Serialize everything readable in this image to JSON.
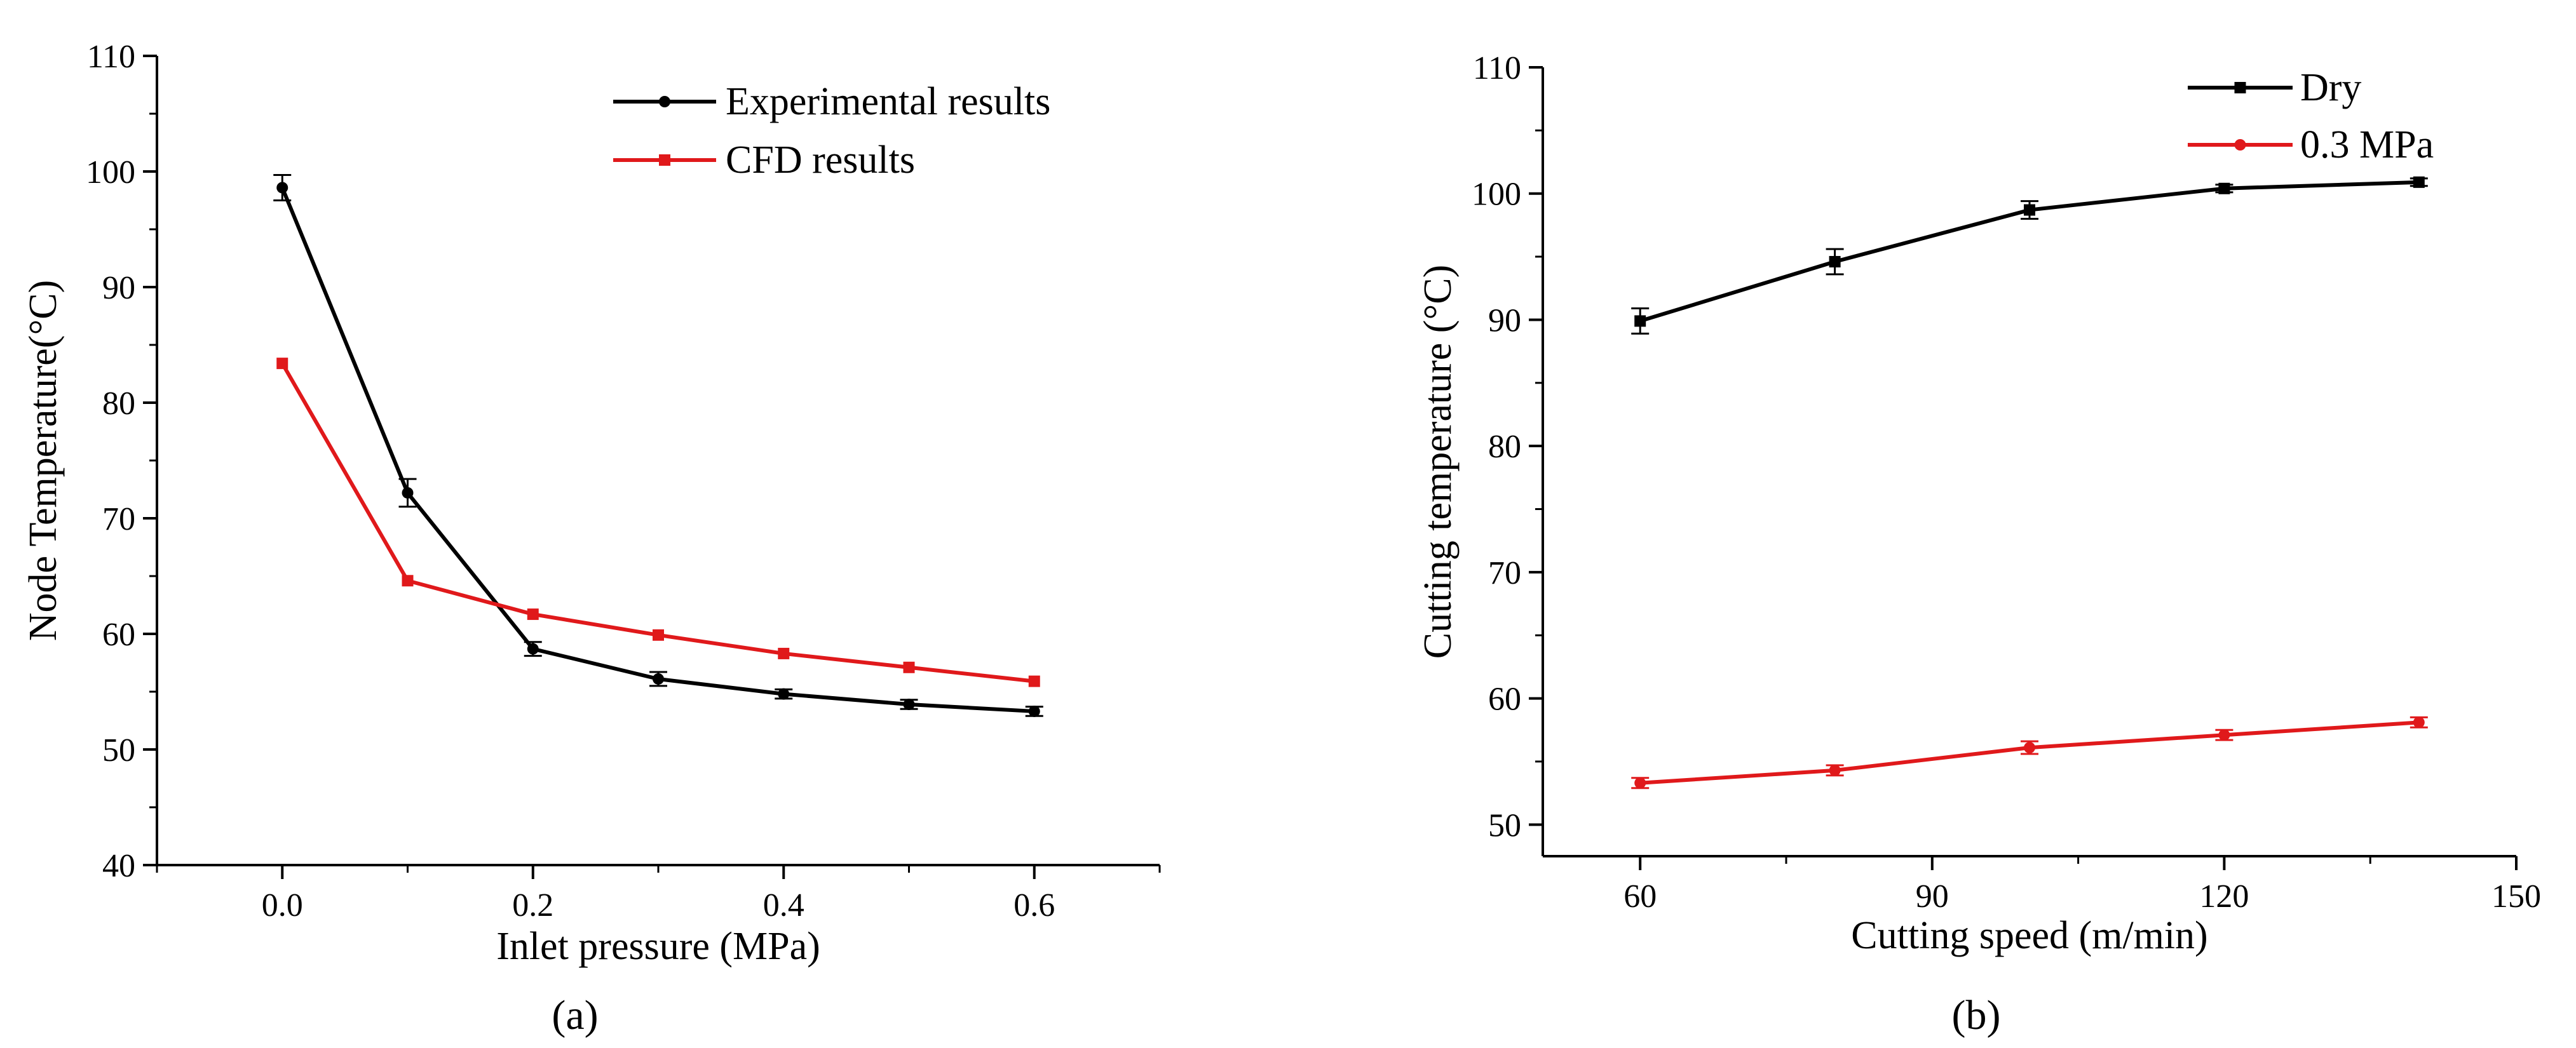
{
  "figure": {
    "panel_a_label": "(a)",
    "panel_b_label": "(b)"
  },
  "chart_data": [
    {
      "type": "line",
      "panel": "a",
      "title": "",
      "xlabel": "Inlet pressure (MPa)",
      "ylabel": "Node Temperature(°C)",
      "xlim": [
        -0.1,
        0.7
      ],
      "ylim": [
        40,
        110
      ],
      "xticks": [
        0.0,
        0.2,
        0.4,
        0.6
      ],
      "xtick_labels": [
        "0.0",
        "0.2",
        "0.4",
        "0.6"
      ],
      "yticks": [
        40,
        50,
        60,
        70,
        80,
        90,
        100,
        110
      ],
      "ytick_labels": [
        "40",
        "50",
        "60",
        "70",
        "80",
        "90",
        "100",
        "110"
      ],
      "legend_position": "top-right",
      "grid": false,
      "x": [
        0.0,
        0.1,
        0.2,
        0.3,
        0.4,
        0.5,
        0.6
      ],
      "series": [
        {
          "name": "Experimental results",
          "color": "#000000",
          "marker": "circle",
          "values": [
            98.6,
            72.2,
            58.7,
            56.1,
            54.8,
            53.9,
            53.3
          ],
          "errors": [
            1.1,
            1.2,
            0.6,
            0.6,
            0.4,
            0.4,
            0.4
          ]
        },
        {
          "name": "CFD results",
          "color": "#e0191b",
          "marker": "square",
          "values": [
            83.4,
            64.6,
            61.7,
            59.9,
            58.3,
            57.1,
            55.9
          ],
          "errors": null
        }
      ]
    },
    {
      "type": "line",
      "panel": "b",
      "title": "",
      "xlabel": "Cutting speed (m/min)",
      "ylabel": "Cutting temperature (°C)",
      "xlim": [
        50,
        150
      ],
      "ylim": [
        47.5,
        110
      ],
      "xticks": [
        60,
        90,
        120,
        150
      ],
      "xtick_labels": [
        "60",
        "90",
        "120",
        "150"
      ],
      "yticks": [
        50,
        60,
        70,
        80,
        90,
        100,
        110
      ],
      "ytick_labels": [
        "50",
        "60",
        "70",
        "80",
        "90",
        "100",
        "110"
      ],
      "legend_position": "top-right",
      "grid": false,
      "x": [
        60,
        80,
        100,
        120,
        140
      ],
      "series": [
        {
          "name": "Dry",
          "color": "#000000",
          "marker": "square",
          "values": [
            89.9,
            94.6,
            98.7,
            100.4,
            100.9
          ],
          "errors": [
            1.0,
            1.0,
            0.7,
            0.3,
            0.3
          ]
        },
        {
          "name": "0.3 MPa",
          "color": "#e0191b",
          "marker": "circle",
          "values": [
            53.3,
            54.3,
            56.1,
            57.1,
            58.1
          ],
          "errors": [
            0.4,
            0.4,
            0.5,
            0.4,
            0.4
          ]
        }
      ]
    }
  ]
}
